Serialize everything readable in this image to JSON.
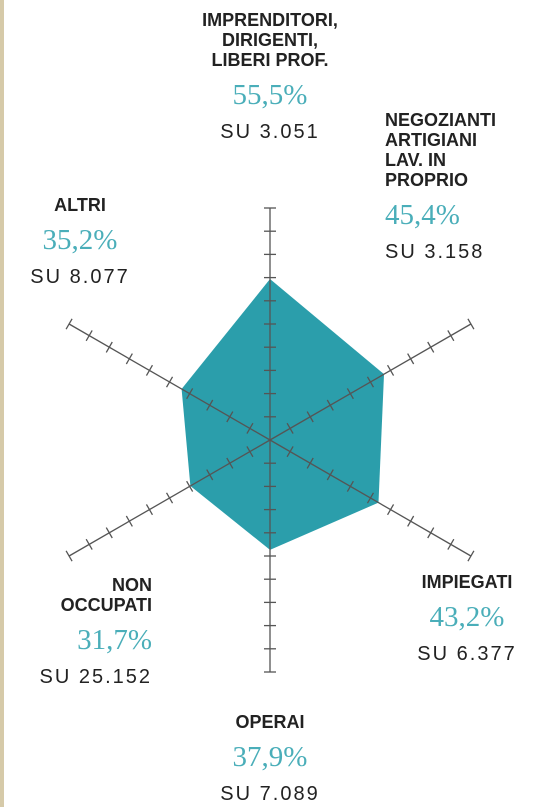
{
  "chart_data": {
    "type": "radar",
    "categories": [
      "IMPRENDITORI,\nDIRIGENTI,\nLIBERI PROF.",
      "NEGOZIANTI\nARTIGIANI\nLAV. IN\nPROPRIO",
      "IMPIEGATI",
      "OPERAI",
      "NON\nOCCUPATI",
      "ALTRI"
    ],
    "values": [
      55.5,
      45.4,
      43.2,
      37.9,
      31.7,
      35.2
    ],
    "value_labels": [
      "55,5%",
      "45,4%",
      "43,2%",
      "37,9%",
      "31,7%",
      "35,2%"
    ],
    "bases": [
      "SU 3.051",
      "SU 3.158",
      "SU 6.377",
      "SU 7.089",
      "SU 25.152",
      "SU 8.077"
    ],
    "color": "#2b9eab",
    "rlim": [
      0,
      80
    ],
    "rticks": [
      8,
      16,
      24,
      32,
      40,
      48,
      56,
      64,
      72,
      80
    ]
  }
}
